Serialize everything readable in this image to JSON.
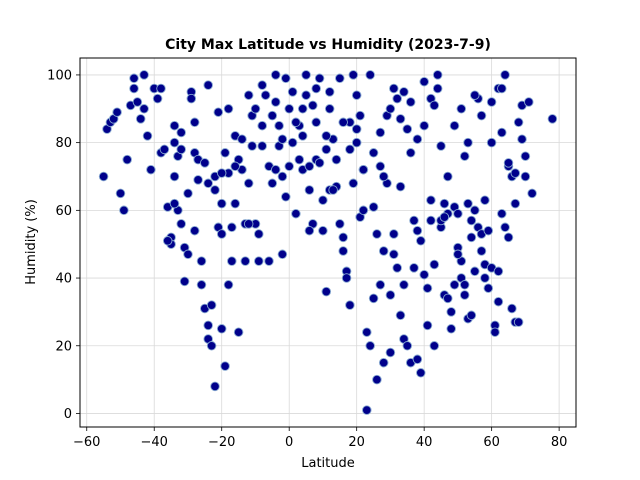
{
  "chart_data": {
    "type": "scatter",
    "title": "City Max Latitude vs Humidity (2023-7-9)",
    "xlabel": "Latitude",
    "ylabel": "Humidity (%)",
    "xlim": [
      -62,
      85
    ],
    "ylim": [
      -4,
      105
    ],
    "xticks": [
      "−60",
      "−40",
      "−20",
      "0",
      "20",
      "40",
      "60",
      "80"
    ],
    "xtick_values": [
      -60,
      -40,
      -20,
      0,
      20,
      40,
      60,
      80
    ],
    "yticks": [
      "0",
      "20",
      "40",
      "60",
      "80",
      "100"
    ],
    "ytick_values": [
      0,
      20,
      40,
      60,
      80,
      100
    ],
    "grid": true,
    "marker_face_color": "#00008b",
    "marker_edge_color": "#87a8d0",
    "points": [
      [
        -55,
        70
      ],
      [
        -54,
        84
      ],
      [
        -53,
        86
      ],
      [
        -52,
        87
      ],
      [
        -51,
        89
      ],
      [
        -50,
        65
      ],
      [
        -49,
        60
      ],
      [
        -48,
        75
      ],
      [
        -47,
        91
      ],
      [
        -46,
        96
      ],
      [
        -46,
        99
      ],
      [
        -45,
        92
      ],
      [
        -44,
        87
      ],
      [
        -43,
        100
      ],
      [
        -43,
        90
      ],
      [
        -42,
        82
      ],
      [
        -41,
        72
      ],
      [
        -40,
        96
      ],
      [
        -39,
        93
      ],
      [
        -38,
        96
      ],
      [
        -38,
        77
      ],
      [
        -37,
        78
      ],
      [
        -36,
        61
      ],
      [
        -35,
        52
      ],
      [
        -35,
        50
      ],
      [
        -34,
        85
      ],
      [
        -34,
        80
      ],
      [
        -34,
        70
      ],
      [
        -33,
        60
      ],
      [
        -33,
        76
      ],
      [
        -32,
        83
      ],
      [
        -32,
        56
      ],
      [
        -31,
        49
      ],
      [
        -31,
        39
      ],
      [
        -30,
        65
      ],
      [
        -29,
        95
      ],
      [
        -29,
        93
      ],
      [
        -28,
        86
      ],
      [
        -28,
        77
      ],
      [
        -27,
        75
      ],
      [
        -27,
        69
      ],
      [
        -26,
        45
      ],
      [
        -26,
        38
      ],
      [
        -25,
        74
      ],
      [
        -25,
        31
      ],
      [
        -24,
        97
      ],
      [
        -24,
        26
      ],
      [
        -24,
        22
      ],
      [
        -23,
        32
      ],
      [
        -23,
        20
      ],
      [
        -22,
        8
      ],
      [
        -22,
        70
      ],
      [
        -21,
        89
      ],
      [
        -21,
        55
      ],
      [
        -20,
        62
      ],
      [
        -20,
        53
      ],
      [
        -20,
        25
      ],
      [
        -19,
        14
      ],
      [
        -19,
        77
      ],
      [
        -18,
        90
      ],
      [
        -18,
        71
      ],
      [
        -17,
        45
      ],
      [
        -17,
        55
      ],
      [
        -16,
        62
      ],
      [
        -16,
        82
      ],
      [
        -15,
        24
      ],
      [
        -15,
        75
      ],
      [
        -14,
        72
      ],
      [
        -13,
        56
      ],
      [
        -13,
        45
      ],
      [
        -12,
        68
      ],
      [
        -12,
        94
      ],
      [
        -11,
        88
      ],
      [
        -11,
        79
      ],
      [
        -10,
        90
      ],
      [
        -10,
        56
      ],
      [
        -9,
        53
      ],
      [
        -9,
        45
      ],
      [
        -8,
        97
      ],
      [
        -8,
        85
      ],
      [
        -7,
        94
      ],
      [
        -6,
        73
      ],
      [
        -5,
        88
      ],
      [
        -5,
        68
      ],
      [
        -4,
        100
      ],
      [
        -4,
        92
      ],
      [
        -3,
        85
      ],
      [
        -3,
        79
      ],
      [
        -2,
        47
      ],
      [
        -2,
        70
      ],
      [
        -1,
        99
      ],
      [
        -1,
        64
      ],
      [
        0,
        90
      ],
      [
        1,
        95
      ],
      [
        1,
        80
      ],
      [
        2,
        59
      ],
      [
        3,
        85
      ],
      [
        3,
        75
      ],
      [
        4,
        72
      ],
      [
        4,
        82
      ],
      [
        5,
        100
      ],
      [
        5,
        94
      ],
      [
        6,
        73
      ],
      [
        6,
        66
      ],
      [
        7,
        56
      ],
      [
        7,
        91
      ],
      [
        8,
        86
      ],
      [
        8,
        75
      ],
      [
        9,
        99
      ],
      [
        9,
        74
      ],
      [
        10,
        63
      ],
      [
        10,
        54
      ],
      [
        11,
        36
      ],
      [
        11,
        78
      ],
      [
        12,
        90
      ],
      [
        12,
        66
      ],
      [
        13,
        81
      ],
      [
        14,
        75
      ],
      [
        14,
        67
      ],
      [
        15,
        99
      ],
      [
        15,
        56
      ],
      [
        16,
        52
      ],
      [
        16,
        48
      ],
      [
        17,
        42
      ],
      [
        17,
        40
      ],
      [
        18,
        86
      ],
      [
        18,
        32
      ],
      [
        19,
        68
      ],
      [
        19,
        100
      ],
      [
        20,
        94
      ],
      [
        20,
        84
      ],
      [
        21,
        88
      ],
      [
        21,
        58
      ],
      [
        22,
        72
      ],
      [
        22,
        60
      ],
      [
        23,
        1
      ],
      [
        23,
        24
      ],
      [
        24,
        20
      ],
      [
        25,
        61
      ],
      [
        25,
        34
      ],
      [
        26,
        53
      ],
      [
        26,
        10
      ],
      [
        27,
        38
      ],
      [
        27,
        73
      ],
      [
        28,
        15
      ],
      [
        28,
        48
      ],
      [
        29,
        68
      ],
      [
        29,
        88
      ],
      [
        30,
        18
      ],
      [
        30,
        35
      ],
      [
        31,
        53
      ],
      [
        31,
        47
      ],
      [
        32,
        43
      ],
      [
        32,
        93
      ],
      [
        33,
        29
      ],
      [
        33,
        67
      ],
      [
        34,
        38
      ],
      [
        34,
        22
      ],
      [
        35,
        20
      ],
      [
        35,
        84
      ],
      [
        36,
        15
      ],
      [
        36,
        77
      ],
      [
        37,
        57
      ],
      [
        37,
        43
      ],
      [
        38,
        16
      ],
      [
        38,
        54
      ],
      [
        39,
        12
      ],
      [
        39,
        51
      ],
      [
        40,
        98
      ],
      [
        40,
        41
      ],
      [
        41,
        37
      ],
      [
        41,
        26
      ],
      [
        42,
        93
      ],
      [
        42,
        63
      ],
      [
        43,
        20
      ],
      [
        43,
        44
      ],
      [
        44,
        100
      ],
      [
        44,
        96
      ],
      [
        45,
        55
      ],
      [
        45,
        57
      ],
      [
        46,
        35
      ],
      [
        46,
        62
      ],
      [
        47,
        59
      ],
      [
        47,
        34
      ],
      [
        48,
        30
      ],
      [
        48,
        25
      ],
      [
        49,
        38
      ],
      [
        49,
        61
      ],
      [
        50,
        59
      ],
      [
        50,
        49
      ],
      [
        51,
        45
      ],
      [
        51,
        40
      ],
      [
        52,
        38
      ],
      [
        52,
        35
      ],
      [
        53,
        28
      ],
      [
        53,
        62
      ],
      [
        54,
        57
      ],
      [
        54,
        29
      ],
      [
        55,
        42
      ],
      [
        55,
        60
      ],
      [
        56,
        55
      ],
      [
        56,
        93
      ],
      [
        57,
        53
      ],
      [
        57,
        48
      ],
      [
        58,
        44
      ],
      [
        58,
        40
      ],
      [
        59,
        37
      ],
      [
        59,
        54
      ],
      [
        60,
        43
      ],
      [
        60,
        80
      ],
      [
        61,
        26
      ],
      [
        61,
        24
      ],
      [
        62,
        33
      ],
      [
        62,
        96
      ],
      [
        63,
        59
      ],
      [
        63,
        96
      ],
      [
        64,
        100
      ],
      [
        64,
        55
      ],
      [
        65,
        52
      ],
      [
        65,
        73
      ],
      [
        66,
        70
      ],
      [
        66,
        31
      ],
      [
        67,
        27
      ],
      [
        67,
        62
      ],
      [
        68,
        27
      ],
      [
        68,
        86
      ],
      [
        69,
        91
      ],
      [
        70,
        70
      ],
      [
        70,
        76
      ],
      [
        71,
        92
      ],
      [
        72,
        65
      ],
      [
        78,
        87
      ],
      [
        -30,
        47
      ],
      [
        -36,
        51
      ],
      [
        -22,
        66
      ],
      [
        -18,
        38
      ],
      [
        -14,
        81
      ],
      [
        -6,
        45
      ],
      [
        -2,
        81
      ],
      [
        2,
        86
      ],
      [
        6,
        54
      ],
      [
        11,
        82
      ],
      [
        13,
        66
      ],
      [
        18,
        78
      ],
      [
        22,
        72
      ],
      [
        25,
        77
      ],
      [
        28,
        70
      ],
      [
        30,
        90
      ],
      [
        33,
        87
      ],
      [
        36,
        92
      ],
      [
        40,
        85
      ],
      [
        43,
        91
      ],
      [
        45,
        79
      ],
      [
        47,
        70
      ],
      [
        49,
        85
      ],
      [
        51,
        90
      ],
      [
        52,
        76
      ],
      [
        53,
        80
      ],
      [
        55,
        94
      ],
      [
        57,
        88
      ],
      [
        60,
        92
      ],
      [
        63,
        83
      ],
      [
        65,
        74
      ],
      [
        67,
        71
      ],
      [
        69,
        81
      ],
      [
        62,
        42
      ],
      [
        58,
        63
      ],
      [
        54,
        52
      ],
      [
        50,
        47
      ],
      [
        46,
        58
      ],
      [
        42,
        57
      ],
      [
        38,
        81
      ],
      [
        34,
        95
      ],
      [
        31,
        96
      ],
      [
        27,
        83
      ],
      [
        24,
        100
      ],
      [
        20,
        80
      ],
      [
        16,
        86
      ],
      [
        12,
        95
      ],
      [
        8,
        96
      ],
      [
        4,
        90
      ],
      [
        0,
        73
      ],
      [
        -4,
        72
      ],
      [
        -8,
        79
      ],
      [
        -12,
        56
      ],
      [
        -16,
        73
      ],
      [
        -20,
        71
      ],
      [
        -24,
        68
      ],
      [
        -28,
        54
      ],
      [
        -32,
        78
      ],
      [
        -34,
        62
      ]
    ]
  }
}
